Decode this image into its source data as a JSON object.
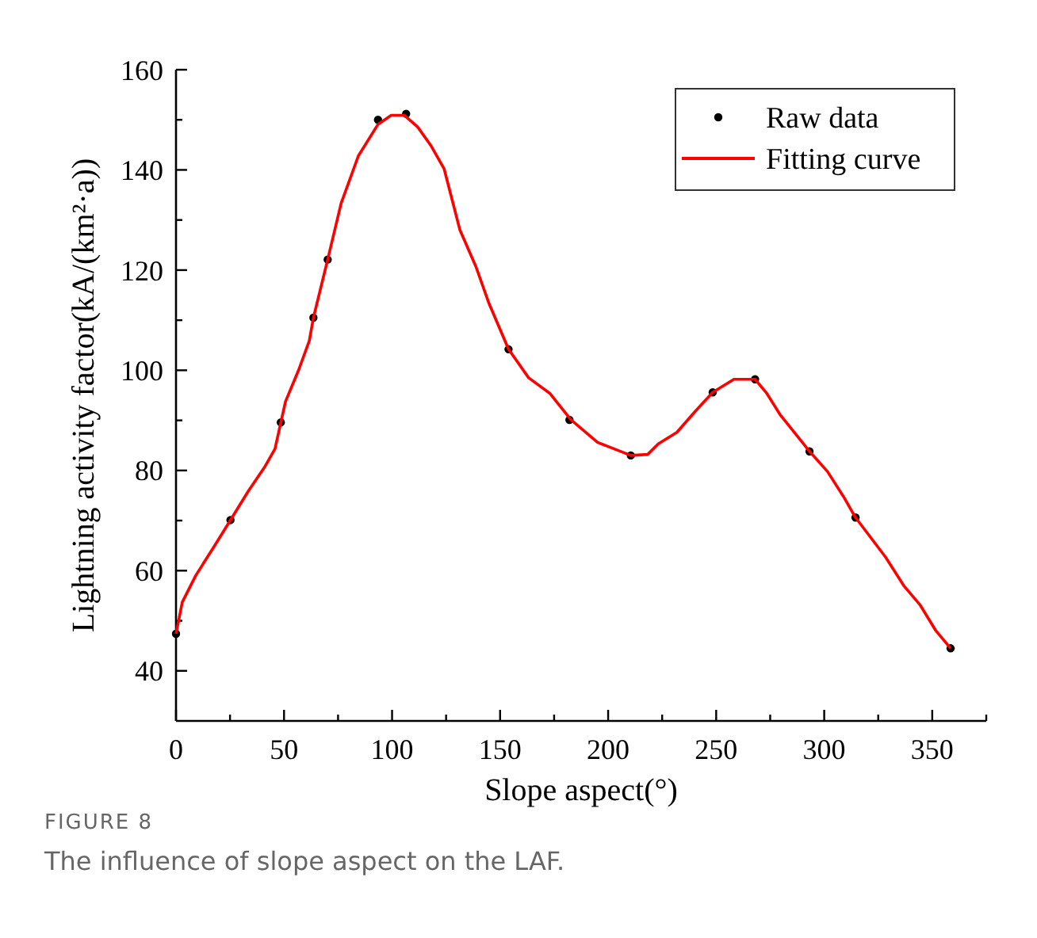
{
  "chart_data": {
    "type": "scatter",
    "xlabel": "Slope aspect(°)",
    "ylabel": "Lightning activity factor(kA/(km²·a))",
    "annotations": [
      "FIGURE 8",
      "The influence of slope aspect on the LAF."
    ],
    "xlim": [
      0,
      375
    ],
    "xticks": [
      0,
      {
        "value": 25,
        "label": null
      },
      50,
      {
        "value": 75,
        "label": null
      },
      100,
      {
        "value": 125,
        "label": null
      },
      150,
      {
        "value": 175,
        "label": null
      },
      200,
      {
        "value": 225,
        "label": null
      },
      250,
      {
        "value": 275,
        "label": null
      },
      300,
      {
        "value": 325,
        "label": null
      },
      350,
      {
        "value": 375,
        "label": null
      }
    ],
    "ylim": [
      30,
      160
    ],
    "yticks": [
      40,
      {
        "value": 50,
        "label": null
      },
      60,
      {
        "value": 70,
        "label": null
      },
      80,
      {
        "value": 90,
        "label": null
      },
      100,
      {
        "value": 110,
        "label": null
      },
      120,
      {
        "value": 130,
        "label": null
      },
      140,
      {
        "value": 150,
        "label": null
      },
      160
    ],
    "grid": false,
    "legend": "top right",
    "series": [
      {
        "name": "Raw data",
        "color": "#000000",
        "marker": "circle",
        "x": [
          0,
          25.2,
          48.5,
          63.6,
          70.2,
          93.5,
          106.5,
          153.9,
          182.1,
          210.5,
          248.4,
          268.0,
          293.2,
          314.5,
          358.5
        ],
        "values": [
          47.4,
          70.1,
          89.6,
          110.5,
          122.1,
          150.0,
          151.2,
          104.2,
          90.1,
          83.0,
          95.6,
          98.2,
          83.8,
          70.6,
          44.5
        ]
      },
      {
        "name": "Fitting curve",
        "type": "line",
        "color": "#ff0000",
        "marker": "none",
        "line_style": "solid",
        "x": [
          0,
          2.9,
          9.1,
          17.6,
          25.2,
          33.5,
          40.9,
          45.8,
          50.7,
          56.8,
          61.7,
          63.6,
          70.2,
          76.4,
          84.4,
          93.5,
          99.6,
          105.7,
          111.8,
          117.9,
          124.1,
          131.4,
          138.8,
          144.9,
          153.9,
          163.2,
          173.0,
          182.8,
          195.1,
          210.5,
          218.3,
          223.2,
          231.8,
          240.3,
          248.4,
          258.2,
          268.0,
          273.4,
          279.5,
          293.2,
          301.5,
          308.9,
          314.5,
          328.4,
          337.0,
          344.3,
          351.7,
          358.5
        ],
        "values": [
          47.4,
          53.7,
          59.0,
          64.8,
          70.1,
          75.9,
          80.6,
          84.3,
          93.8,
          100.1,
          105.9,
          110.5,
          122.1,
          133.3,
          142.8,
          149.1,
          150.9,
          150.9,
          148.6,
          144.9,
          140.2,
          128.0,
          120.7,
          113.3,
          104.2,
          98.5,
          95.4,
          90.1,
          85.6,
          83.0,
          83.2,
          85.3,
          87.6,
          91.8,
          95.6,
          98.2,
          98.2,
          95.4,
          91.2,
          83.8,
          79.8,
          74.8,
          70.6,
          62.7,
          56.9,
          53.2,
          48.0,
          44.5
        ]
      }
    ]
  }
}
